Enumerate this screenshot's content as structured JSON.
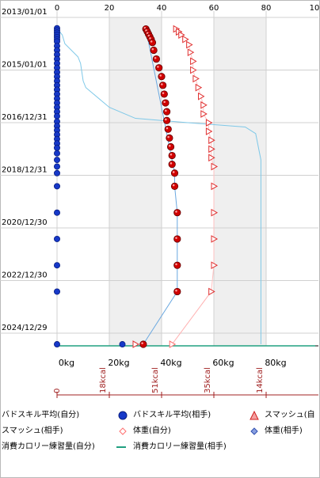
{
  "chart_data": {
    "type": "scatter",
    "top_axis": {
      "ticks": [
        "0",
        "20",
        "40",
        "60",
        "80",
        "10"
      ],
      "range": [
        0,
        100
      ]
    },
    "bottom_axis": {
      "ticks": [
        "0kg",
        "20kg",
        "40kg",
        "60kg",
        "80kg"
      ],
      "range_kg": [
        0,
        100
      ]
    },
    "kcal_axis": {
      "ticks": [
        "0",
        "18kcal",
        "51kcal",
        "35kcal",
        "14kcal"
      ]
    },
    "y_ticks": [
      "2013/01/01",
      "2015/01/01",
      "2016/12/31",
      "2018/12/31",
      "2020/12/30",
      "2022/12/30",
      "2024/12/29"
    ],
    "y_range": [
      "2013/01/01",
      "2025/06/01"
    ],
    "grid": true,
    "shaded_bands": [
      [
        20,
        40
      ],
      [
        60,
        80
      ]
    ],
    "series": [
      {
        "name": "バドスキル平均(自分)",
        "marker": "blue-circle",
        "color": "#1040c8",
        "points": [
          [
            "2013/06/01",
            0
          ],
          [
            "2013/07/01",
            0
          ],
          [
            "2013/08/01",
            0
          ],
          [
            "2013/09/01",
            0
          ],
          [
            "2013/10/01",
            0
          ],
          [
            "2013/11/01",
            0
          ],
          [
            "2013/12/01",
            0
          ],
          [
            "2014/02/01",
            0
          ],
          [
            "2014/04/01",
            0
          ],
          [
            "2014/06/01",
            0
          ],
          [
            "2014/08/01",
            0
          ],
          [
            "2014/10/01",
            0
          ],
          [
            "2014/12/01",
            0
          ],
          [
            "2015/02/01",
            0
          ],
          [
            "2015/04/01",
            0
          ],
          [
            "2015/06/01",
            0
          ],
          [
            "2015/08/01",
            0
          ],
          [
            "2015/10/01",
            0
          ],
          [
            "2015/12/01",
            0
          ],
          [
            "2016/02/01",
            0
          ],
          [
            "2016/04/01",
            0
          ],
          [
            "2016/06/01",
            0
          ],
          [
            "2016/08/01",
            0
          ],
          [
            "2016/10/01",
            0
          ],
          [
            "2016/12/15",
            0
          ],
          [
            "2017/02/15",
            0
          ],
          [
            "2017/04/15",
            0
          ],
          [
            "2017/06/15",
            0
          ],
          [
            "2017/08/15",
            0
          ],
          [
            "2017/10/15",
            0
          ],
          [
            "2017/12/15",
            0
          ],
          [
            "2018/03/01",
            0
          ],
          [
            "2018/06/01",
            0
          ],
          [
            "2018/09/01",
            0
          ],
          [
            "2018/12/01",
            0
          ],
          [
            "2019/06/01",
            0
          ],
          [
            "2020/06/01",
            0
          ],
          [
            "2021/06/01",
            0
          ],
          [
            "2022/06/01",
            0
          ],
          [
            "2023/06/01",
            0
          ],
          [
            "2025/06/01",
            0
          ],
          [
            "2025/06/01",
            25
          ]
        ]
      },
      {
        "name": "バドスキル平均(相手)",
        "marker": "red-sphere",
        "color": "#cc0000",
        "points": [
          [
            "2013/06/10",
            34
          ],
          [
            "2013/07/15",
            34.5
          ],
          [
            "2013/08/20",
            35
          ],
          [
            "2013/09/25",
            35.5
          ],
          [
            "2013/11/01",
            36
          ],
          [
            "2013/12/15",
            36.5
          ],
          [
            "2014/04/01",
            37
          ],
          [
            "2014/08/01",
            38
          ],
          [
            "2014/12/01",
            39
          ],
          [
            "2015/04/01",
            40
          ],
          [
            "2015/08/01",
            40.5
          ],
          [
            "2015/12/01",
            41
          ],
          [
            "2016/04/01",
            41.5
          ],
          [
            "2016/08/01",
            42
          ],
          [
            "2016/12/01",
            42
          ],
          [
            "2017/04/01",
            42.5
          ],
          [
            "2017/08/01",
            43
          ],
          [
            "2017/12/01",
            43.5
          ],
          [
            "2018/04/01",
            44
          ],
          [
            "2018/08/01",
            44
          ],
          [
            "2018/12/01",
            45
          ],
          [
            "2019/06/01",
            45
          ],
          [
            "2020/06/01",
            46
          ],
          [
            "2021/06/01",
            46
          ],
          [
            "2022/06/01",
            46
          ],
          [
            "2023/06/01",
            46
          ],
          [
            "2025/06/01",
            33
          ]
        ]
      },
      {
        "name": "スマッシュ(自分)",
        "marker": "red-triangle",
        "color": "#e03030",
        "points": [
          [
            "2013/06/10",
            45.5
          ],
          [
            "2013/07/20",
            46.5
          ],
          [
            "2013/09/01",
            47.5
          ],
          [
            "2013/11/01",
            49
          ],
          [
            "2014/01/15",
            50.5
          ],
          [
            "2014/05/01",
            51
          ],
          [
            "2014/09/01",
            52
          ],
          [
            "2015/01/01",
            52
          ],
          [
            "2015/05/01",
            53
          ],
          [
            "2015/09/01",
            54
          ],
          [
            "2016/01/01",
            55
          ],
          [
            "2016/05/01",
            56
          ],
          [
            "2016/09/01",
            56
          ],
          [
            "2017/01/01",
            58
          ],
          [
            "2017/05/01",
            58
          ],
          [
            "2017/09/01",
            59
          ],
          [
            "2018/01/01",
            59
          ],
          [
            "2018/05/01",
            59
          ],
          [
            "2018/09/01",
            60
          ],
          [
            "2019/06/01",
            60
          ],
          [
            "2020/06/01",
            60
          ],
          [
            "2021/06/01",
            60
          ],
          [
            "2022/06/01",
            60
          ],
          [
            "2023/06/01",
            59
          ],
          [
            "2025/06/01",
            30
          ]
        ]
      },
      {
        "name": "体重(自分)",
        "marker": "pink-diamond",
        "color": "#ff8080",
        "points": [
          [
            "2025/06/01",
            44
          ]
        ]
      },
      {
        "name": "体重(相手)",
        "marker": "blue-diamond",
        "color": "#3050b0",
        "points": []
      },
      {
        "name": "消費カロリー練習量(相手)",
        "marker": "green-line",
        "color": "#20a080",
        "points": [
          [
            "2025/06/01",
            0
          ],
          [
            "2025/06/01",
            100
          ]
        ]
      }
    ],
    "line_bad_avg": [
      [
        "2013/06/01",
        0
      ],
      [
        "2013/09/01",
        2
      ],
      [
        "2014/01/01",
        3
      ],
      [
        "2014/07/01",
        8
      ],
      [
        "2014/10/01",
        9
      ],
      [
        "2015/06/01",
        10
      ],
      [
        "2015/09/01",
        11
      ],
      [
        "2016/06/01",
        20
      ],
      [
        "2016/11/01",
        30
      ],
      [
        "2016/12/31",
        50
      ],
      [
        "2017/03/01",
        72
      ],
      [
        "2017/06/01",
        76
      ],
      [
        "2018/06/01",
        78
      ],
      [
        "2025/06/01",
        78
      ]
    ],
    "line_bad_opp": [
      [
        "2013/06/10",
        34
      ],
      [
        "2018/12/01",
        45
      ],
      [
        "2019/06/01",
        45
      ],
      [
        "2020/06/01",
        46
      ],
      [
        "2023/06/01",
        46
      ],
      [
        "2025/06/01",
        33
      ]
    ],
    "line_smash_connector": [
      [
        "2023/06/01",
        59
      ],
      [
        "2025/06/01",
        44
      ]
    ]
  },
  "legend": [
    {
      "label": "バドスキル平均(自分)",
      "marker": "blue-line"
    },
    {
      "label": "バドスキル平均(相手)",
      "marker": "blue-circle"
    },
    {
      "label": "スマッシュ(自",
      "marker": "red-triangle"
    },
    {
      "label": "スマッシュ(相手)",
      "marker": "none"
    },
    {
      "label": "体重(自分)",
      "marker": "pink-diamond"
    },
    {
      "label": "体重(相手)",
      "marker": "blue-diamond"
    },
    {
      "label": "消費カロリー練習量(自分)",
      "marker": "none"
    },
    {
      "label": "消費カロリー練習量(相手)",
      "marker": "green-line"
    }
  ],
  "colors": {
    "band": "#efefef",
    "grid": "#d0d0d0",
    "kcal_axis": "#a02020"
  }
}
